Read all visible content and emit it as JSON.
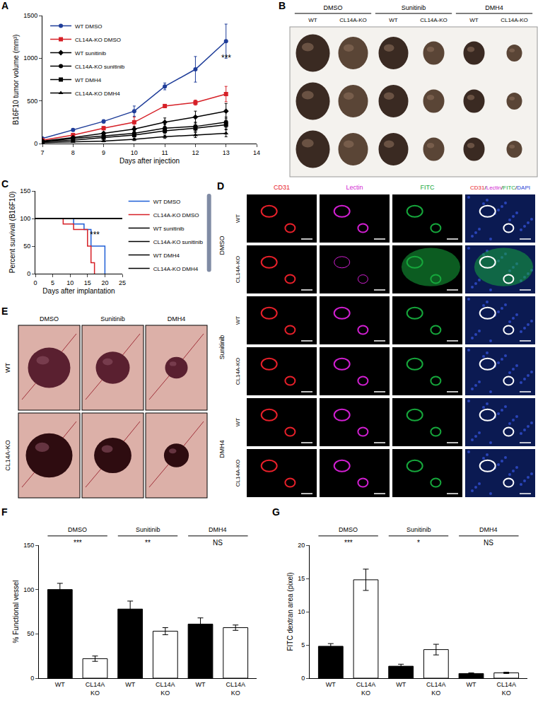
{
  "chart_data": [
    {
      "panel": "A",
      "type": "line",
      "x_label": "Days after injection",
      "y_label": "B16F10 tumor volume (mm³)",
      "x": [
        7,
        8,
        9,
        10,
        11,
        12,
        13
      ],
      "xlim": [
        7,
        14
      ],
      "xticks": [
        7,
        8,
        9,
        10,
        11,
        12,
        13,
        14
      ],
      "ylim": [
        0,
        1500
      ],
      "yticks": [
        0,
        500,
        1000,
        1500
      ],
      "grid": false,
      "legend": "upper left",
      "annotations": [
        {
          "text": "***",
          "x": 13,
          "y": 1000
        }
      ],
      "series": [
        {
          "name": "WT DMSO",
          "color": "#1f3d99",
          "marker": "circle",
          "values": [
            60,
            160,
            260,
            380,
            670,
            870,
            1200
          ],
          "error": [
            10,
            15,
            20,
            60,
            40,
            150,
            200
          ]
        },
        {
          "name": "CL14A-KO DMSO",
          "color": "#d62027",
          "marker": "square",
          "values": [
            40,
            100,
            180,
            250,
            440,
            480,
            580
          ],
          "error": [
            5,
            10,
            20,
            60,
            20,
            30,
            90
          ]
        },
        {
          "name": "WT sunitinib",
          "color": "#000000",
          "marker": "diamond",
          "values": [
            30,
            70,
            120,
            170,
            250,
            310,
            380
          ],
          "error": [
            5,
            10,
            15,
            30,
            50,
            70,
            90
          ]
        },
        {
          "name": "CL14A-KO sunitinib",
          "color": "#000000",
          "marker": "circle",
          "values": [
            20,
            60,
            90,
            120,
            180,
            200,
            250
          ],
          "error": [
            5,
            10,
            15,
            30,
            40,
            50,
            60
          ]
        },
        {
          "name": "WT DMH4",
          "color": "#000000",
          "marker": "square",
          "values": [
            20,
            40,
            70,
            100,
            150,
            180,
            220
          ],
          "error": [
            5,
            10,
            10,
            20,
            30,
            40,
            50
          ]
        },
        {
          "name": "CL14A-KO DMH4",
          "color": "#000000",
          "marker": "triangle",
          "values": [
            10,
            20,
            30,
            50,
            80,
            100,
            120
          ],
          "error": [
            3,
            5,
            10,
            15,
            20,
            30,
            40
          ]
        }
      ]
    },
    {
      "panel": "C",
      "type": "line",
      "line_style": "step",
      "x_label": "Days after implantation",
      "y_label": "Percent survival (B16F10)",
      "xlim": [
        0,
        25
      ],
      "xticks": [
        0,
        5,
        10,
        15,
        20,
        25
      ],
      "ylim": [
        0,
        150
      ],
      "yticks": [
        0,
        50,
        100,
        150
      ],
      "grid": false,
      "legend": "right",
      "annotations": [
        {
          "text": "***",
          "x": 17,
          "y": 70
        }
      ],
      "series": [
        {
          "name": "WT DMSO",
          "color": "#1f5fd6",
          "x": [
            0,
            11,
            14,
            16,
            20
          ],
          "values": [
            100,
            90,
            80,
            50,
            0
          ]
        },
        {
          "name": "CL14A-KO DMSO",
          "color": "#d62027",
          "x": [
            0,
            8,
            11,
            15,
            16,
            17
          ],
          "values": [
            100,
            90,
            80,
            50,
            20,
            0
          ]
        },
        {
          "name": "WT sunitinib",
          "color": "#000000",
          "x": [
            0,
            25
          ],
          "values": [
            100,
            100
          ]
        },
        {
          "name": "CL14A-KO sunitinib",
          "color": "#000000",
          "x": [
            0,
            25
          ],
          "values": [
            100,
            100
          ]
        },
        {
          "name": "WT DMH4",
          "color": "#000000",
          "x": [
            0,
            25
          ],
          "values": [
            100,
            100
          ]
        },
        {
          "name": "CL14A-KO DMH4",
          "color": "#000000",
          "x": [
            0,
            25
          ],
          "values": [
            100,
            100
          ]
        }
      ]
    },
    {
      "panel": "F",
      "type": "bar",
      "y_label": "% Functional vessel",
      "categories": [
        "WT",
        "CL14A\nKO",
        "WT",
        "CL14A\nKO",
        "WT",
        "CL14A\nKO"
      ],
      "values": [
        100,
        22,
        78,
        53,
        61,
        57
      ],
      "error": [
        7,
        3,
        9,
        4,
        7,
        3
      ],
      "colors": [
        "#000000",
        "#ffffff",
        "#000000",
        "#ffffff",
        "#000000",
        "#ffffff"
      ],
      "ylim": [
        0,
        150
      ],
      "yticks": [
        0,
        50,
        100,
        150
      ],
      "grid": false,
      "groups": [
        {
          "label": "DMSO",
          "significance": "***"
        },
        {
          "label": "Sunitinib",
          "significance": "**"
        },
        {
          "label": "DMH4",
          "significance": "NS"
        }
      ]
    },
    {
      "panel": "G",
      "type": "bar",
      "y_label": "FITC dextran area (pixel)",
      "categories": [
        "WT",
        "CL14A\nKO",
        "WT",
        "CL14A\nKO",
        "WT",
        "CL14A\nKO"
      ],
      "values": [
        4.8,
        14.8,
        1.8,
        4.3,
        0.7,
        0.8
      ],
      "error": [
        0.4,
        1.6,
        0.3,
        0.8,
        0.1,
        0.1
      ],
      "colors": [
        "#000000",
        "#ffffff",
        "#000000",
        "#ffffff",
        "#000000",
        "#ffffff"
      ],
      "ylim": [
        0,
        20
      ],
      "yticks": [
        0,
        5,
        10,
        15,
        20
      ],
      "grid": false,
      "groups": [
        {
          "label": "DMSO",
          "significance": "***"
        },
        {
          "label": "Sunitinib",
          "significance": "*"
        },
        {
          "label": "DMH4",
          "significance": "NS"
        }
      ]
    }
  ],
  "panels": {
    "B": {
      "panel": "B",
      "groups": [
        "DMSO",
        "Sunitinib",
        "DMH4"
      ],
      "columns": [
        "WT",
        "CL14A-KO"
      ]
    },
    "D": {
      "panel": "D",
      "channels": [
        {
          "text": "CD31",
          "color": "#e8202a"
        },
        {
          "text": "Lectin",
          "color": "#d21fd2"
        },
        {
          "text": "FITC",
          "color": "#16a83c"
        }
      ],
      "merge": [
        {
          "text": "CD31",
          "color": "#e8202a"
        },
        {
          "text": "/",
          "color": "#000000"
        },
        {
          "text": "Lectin",
          "color": "#d21fd2"
        },
        {
          "text": "/",
          "color": "#000000"
        },
        {
          "text": "FITC",
          "color": "#16a83c"
        },
        {
          "text": "/",
          "color": "#000000"
        },
        {
          "text": "DAPI",
          "color": "#1f3fd6"
        }
      ],
      "groups": [
        "DMSO",
        "Sunitinib",
        "DMH4"
      ],
      "rows": [
        "WT",
        "CL14A-KO"
      ]
    },
    "E": {
      "panel": "E",
      "columns": [
        "DMSO",
        "Sunitinib",
        "DMH4"
      ],
      "rows": [
        "WT",
        "CL14A-KO"
      ]
    }
  }
}
